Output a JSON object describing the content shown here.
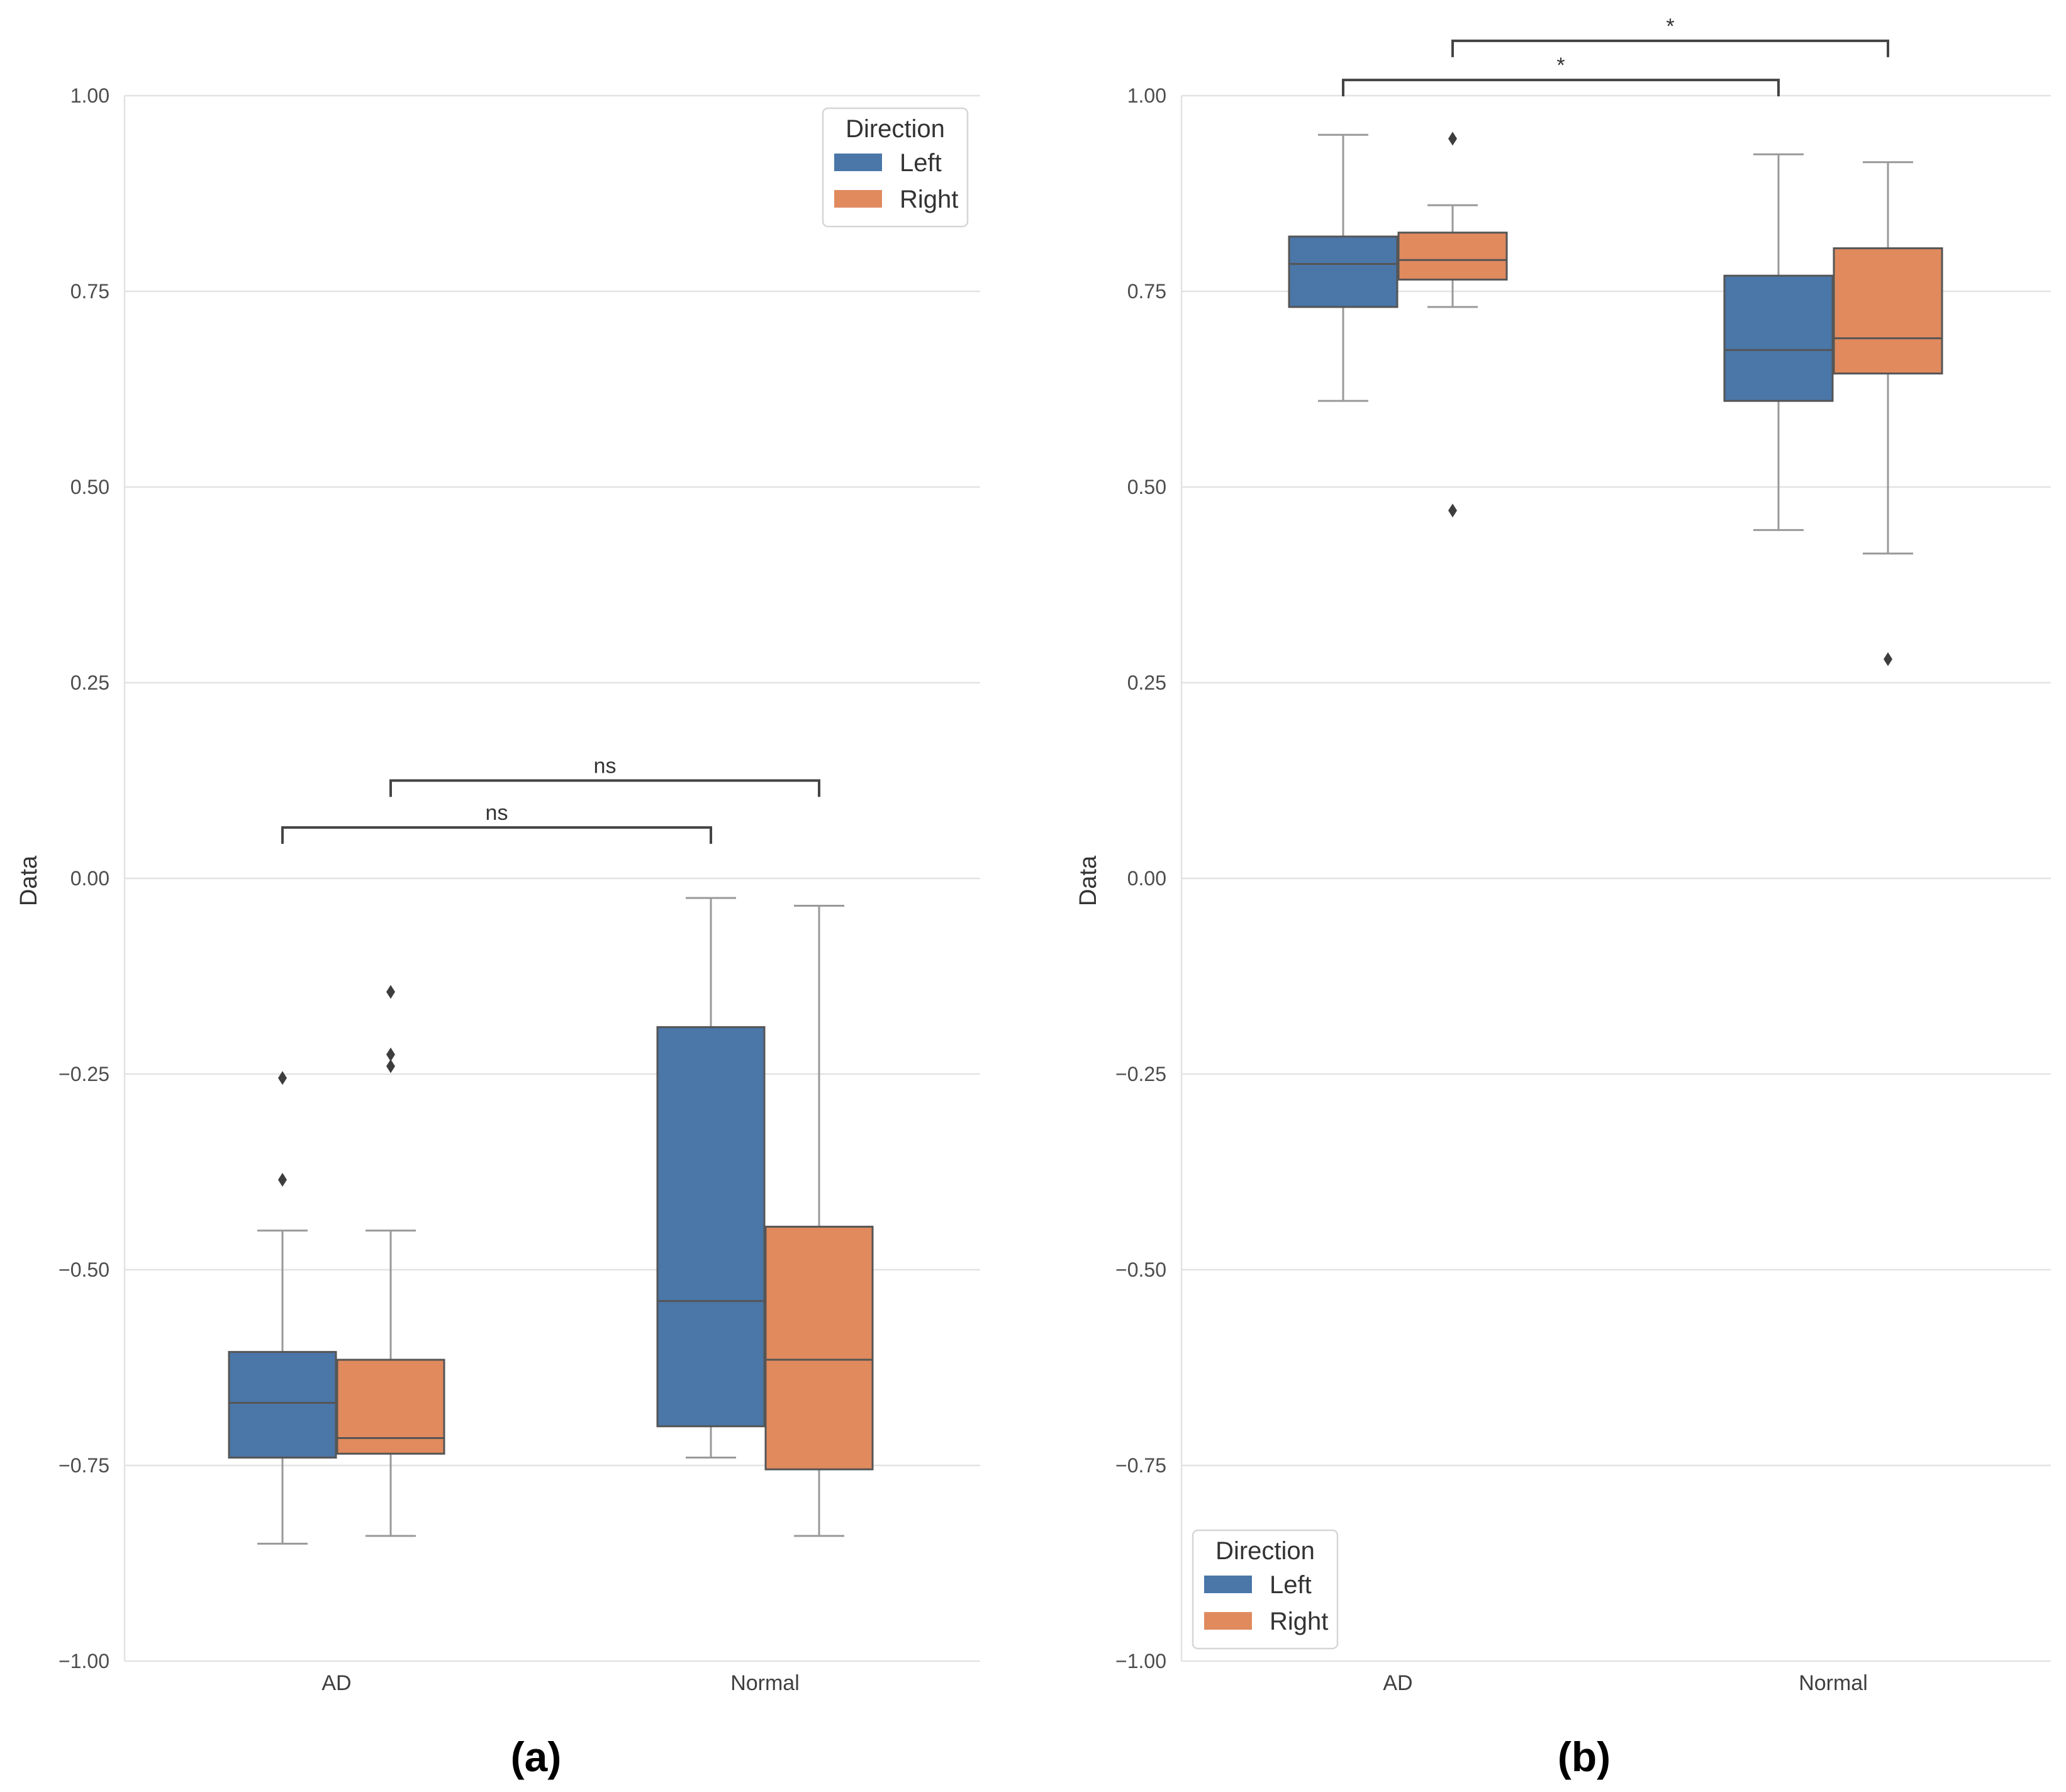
{
  "chart_data": [
    {
      "panel": "(a)",
      "type": "box",
      "ylabel": "Data",
      "ylim": [
        -1.0,
        1.0
      ],
      "yticks": [
        "1.00",
        "0.75",
        "0.50",
        "0.25",
        "0.00",
        "−0.25",
        "−0.50",
        "−0.75",
        "−1.00"
      ],
      "ytick_values": [
        1.0,
        0.75,
        0.5,
        0.25,
        0.0,
        -0.25,
        -0.5,
        -0.75,
        -1.0
      ],
      "categories": [
        "AD",
        "Normal"
      ],
      "hue": [
        "Left",
        "Right"
      ],
      "legend": {
        "title": "Direction",
        "entries": [
          "Left",
          "Right"
        ],
        "loc": "upper right"
      },
      "boxes": [
        {
          "category": "AD",
          "hue": "Left",
          "whislo": -0.85,
          "q1": -0.74,
          "med": -0.67,
          "q3": -0.605,
          "whishi": -0.45,
          "fliers": [
            -0.255,
            -0.385
          ]
        },
        {
          "category": "AD",
          "hue": "Right",
          "whislo": -0.84,
          "q1": -0.735,
          "med": -0.715,
          "q3": -0.615,
          "whishi": -0.45,
          "fliers": [
            -0.145,
            -0.225,
            -0.24
          ]
        },
        {
          "category": "Normal",
          "hue": "Left",
          "whislo": -0.74,
          "q1": -0.7,
          "med": -0.54,
          "q3": -0.19,
          "whishi": -0.025,
          "fliers": []
        },
        {
          "category": "Normal",
          "hue": "Right",
          "whislo": -0.84,
          "q1": -0.755,
          "med": -0.615,
          "q3": -0.445,
          "whishi": -0.035,
          "fliers": []
        }
      ],
      "annotations": [
        {
          "from": "AD-Left",
          "to": "Normal-Left",
          "label": "ns",
          "y": 0.065
        },
        {
          "from": "AD-Right",
          "to": "Normal-Right",
          "label": "ns",
          "y": 0.125
        }
      ]
    },
    {
      "panel": "(b)",
      "type": "box",
      "ylabel": "Data",
      "ylim": [
        -1.0,
        1.0
      ],
      "yticks": [
        "1.00",
        "0.75",
        "0.50",
        "0.25",
        "0.00",
        "−0.25",
        "−0.50",
        "−0.75",
        "−1.00"
      ],
      "ytick_values": [
        1.0,
        0.75,
        0.5,
        0.25,
        0.0,
        -0.25,
        -0.5,
        -0.75,
        -1.0
      ],
      "categories": [
        "AD",
        "Normal"
      ],
      "hue": [
        "Left",
        "Right"
      ],
      "legend": {
        "title": "Direction",
        "entries": [
          "Left",
          "Right"
        ],
        "loc": "lower left"
      },
      "boxes": [
        {
          "category": "AD",
          "hue": "Left",
          "whislo": 0.61,
          "q1": 0.73,
          "med": 0.785,
          "q3": 0.82,
          "whishi": 0.95,
          "fliers": []
        },
        {
          "category": "AD",
          "hue": "Right",
          "whislo": 0.73,
          "q1": 0.765,
          "med": 0.79,
          "q3": 0.825,
          "whishi": 0.86,
          "fliers": [
            0.945,
            0.47
          ]
        },
        {
          "category": "Normal",
          "hue": "Left",
          "whislo": 0.445,
          "q1": 0.61,
          "med": 0.675,
          "q3": 0.77,
          "whishi": 0.925,
          "fliers": []
        },
        {
          "category": "Normal",
          "hue": "Right",
          "whislo": 0.415,
          "q1": 0.645,
          "med": 0.69,
          "q3": 0.805,
          "whishi": 0.915,
          "fliers": [
            0.28
          ]
        }
      ],
      "annotations": [
        {
          "from": "AD-Left",
          "to": "Normal-Left",
          "label": "*",
          "y": 1.02
        },
        {
          "from": "AD-Right",
          "to": "Normal-Right",
          "label": "*",
          "y": 1.07
        }
      ]
    }
  ],
  "colors": {
    "Left": "#4a76a8",
    "Right": "#e08a5e",
    "box_edge": "#555555",
    "whisker": "#999999",
    "grid": "#e3e3e3"
  }
}
